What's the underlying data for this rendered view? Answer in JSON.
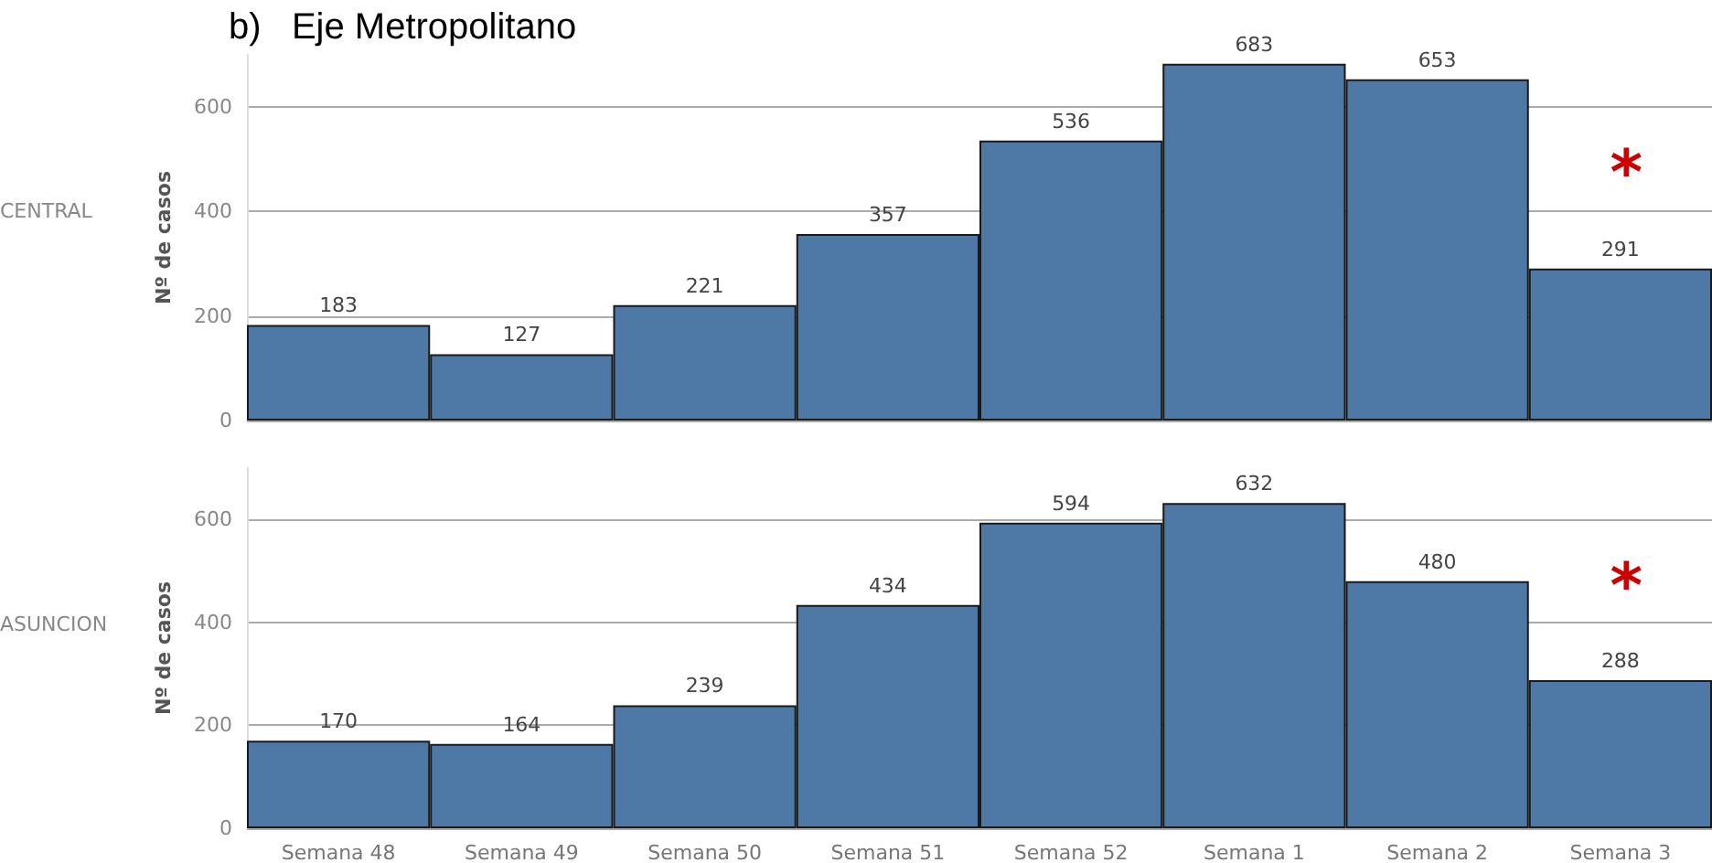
{
  "chart_data": [
    {
      "type": "bar",
      "title": "b)   Eje Metropolitano",
      "ylabel": "Nº de casos",
      "categories": [
        null,
        null,
        null,
        null,
        null,
        null,
        null,
        null
      ],
      "values": [
        183,
        127,
        221,
        357,
        536,
        683,
        653,
        291
      ],
      "color": "#4e78a6",
      "ylim": [
        0,
        700
      ],
      "yticks": [
        0,
        200,
        400,
        600
      ],
      "grid": "y",
      "data_labels": true,
      "tick_labels": "y",
      "annotations": [
        "CENTRAL",
        "*"
      ]
    },
    {
      "type": "bar",
      "ylabel": "Nº de casos",
      "categories": [
        "Semana 48",
        "Semana 49",
        "Semana 50",
        "Semana 51",
        "Semana 52",
        "Semana 1",
        "Semana 2",
        "Semana 3"
      ],
      "values": [
        170,
        164,
        239,
        434,
        594,
        632,
        480,
        288
      ],
      "color": "#4e78a6",
      "ylim": [
        0,
        700
      ],
      "yticks": [
        0,
        200,
        400,
        600
      ],
      "grid": "y",
      "data_labels": true,
      "annotations": [
        "ASUNCION",
        "*"
      ]
    }
  ]
}
